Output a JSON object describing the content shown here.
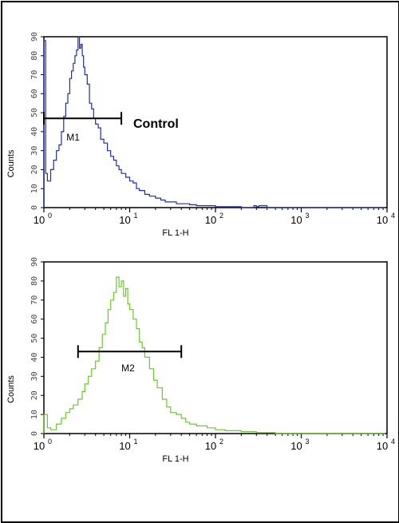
{
  "chart_data": [
    {
      "type": "line",
      "xlabel": "FL 1-H",
      "ylabel": "Counts",
      "x_scale": "log",
      "xlim": [
        1,
        10000
      ],
      "ylim": [
        0,
        90
      ],
      "y_ticks": [
        0,
        10,
        20,
        30,
        40,
        50,
        60,
        70,
        80,
        90
      ],
      "x_ticks": [
        {
          "base": "10",
          "exp": "0"
        },
        {
          "base": "10",
          "exp": "1"
        },
        {
          "base": "10",
          "exp": "2"
        },
        {
          "base": "10",
          "exp": "3"
        },
        {
          "base": "10",
          "exp": "4"
        }
      ],
      "annotation": "Control",
      "series": [
        {
          "color": "#1f2fa8",
          "x": [
            1.0,
            1.05,
            1.1,
            1.2,
            1.3,
            1.4,
            1.5,
            1.6,
            1.7,
            1.8,
            1.9,
            2.0,
            2.1,
            2.2,
            2.3,
            2.4,
            2.5,
            2.6,
            2.7,
            2.8,
            2.9,
            3.0,
            3.2,
            3.4,
            3.6,
            3.8,
            4.0,
            4.3,
            4.6,
            5.0,
            5.5,
            6.0,
            6.5,
            7.0,
            7.5,
            8.0,
            9.0,
            10,
            11,
            12,
            13,
            15,
            17,
            20,
            23,
            26,
            30,
            35,
            40,
            50,
            60,
            80,
            100,
            150,
            200,
            280,
            300,
            320,
            400,
            600,
            1000,
            2000,
            5000,
            9500
          ],
          "y": [
            88,
            18,
            14,
            20,
            25,
            30,
            33,
            40,
            48,
            55,
            60,
            68,
            72,
            76,
            80,
            83,
            90,
            84,
            86,
            80,
            74,
            70,
            65,
            55,
            52,
            47,
            44,
            42,
            36,
            34,
            30,
            27,
            25,
            22,
            20,
            18,
            16,
            14,
            13,
            10,
            9,
            7,
            6,
            5,
            4,
            3,
            3,
            2,
            2,
            1.5,
            1,
            1,
            0.5,
            0.5,
            0,
            1,
            0.5,
            1,
            0,
            0,
            0,
            0,
            0,
            0
          ]
        }
      ],
      "markers": [
        {
          "label": "M1",
          "x_start": 1.0,
          "x_end": 8.0,
          "y": 47
        }
      ]
    },
    {
      "type": "line",
      "xlabel": "FL 1-H",
      "ylabel": "Counts",
      "x_scale": "log",
      "xlim": [
        1,
        10000
      ],
      "ylim": [
        0,
        90
      ],
      "y_ticks": [
        0,
        10,
        20,
        30,
        40,
        50,
        60,
        70,
        80,
        90
      ],
      "x_ticks": [
        {
          "base": "10",
          "exp": "0"
        },
        {
          "base": "10",
          "exp": "1"
        },
        {
          "base": "10",
          "exp": "2"
        },
        {
          "base": "10",
          "exp": "3"
        },
        {
          "base": "10",
          "exp": "4"
        }
      ],
      "series": [
        {
          "color": "#6cc72e",
          "x": [
            1.0,
            1.1,
            1.2,
            1.4,
            1.6,
            1.8,
            2.0,
            2.2,
            2.5,
            2.8,
            3.0,
            3.3,
            3.6,
            4.0,
            4.4,
            4.8,
            5.2,
            5.6,
            6.0,
            6.5,
            7.0,
            7.5,
            8.0,
            8.5,
            9.0,
            9.5,
            10,
            11,
            12,
            13,
            14,
            15,
            17,
            19,
            21,
            24,
            27,
            30,
            35,
            40,
            45,
            50,
            60,
            80,
            100,
            130,
            200,
            300,
            500,
            1000,
            3000,
            9500
          ],
          "y": [
            10,
            3,
            2,
            5,
            8,
            11,
            13,
            15,
            18,
            22,
            26,
            30,
            34,
            38,
            45,
            52,
            58,
            65,
            70,
            74,
            82,
            77,
            80,
            72,
            76,
            68,
            65,
            60,
            55,
            48,
            45,
            40,
            34,
            28,
            24,
            18,
            14,
            11,
            10,
            8,
            6,
            5,
            4,
            3,
            2,
            1.5,
            1,
            0.5,
            0,
            0,
            0,
            0
          ]
        }
      ],
      "markers": [
        {
          "label": "M2",
          "x_start": 2.5,
          "x_end": 40.0,
          "y": 43
        }
      ]
    }
  ]
}
